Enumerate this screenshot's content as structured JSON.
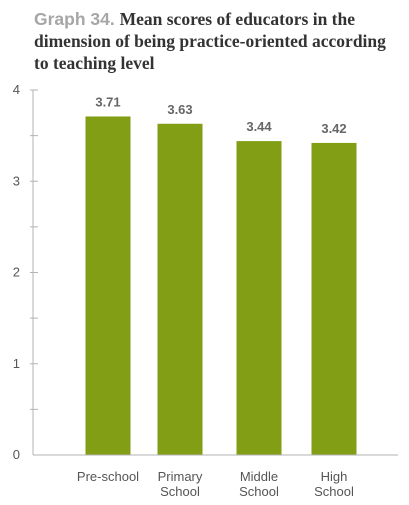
{
  "title": {
    "label": "Graph 34.",
    "text": "Mean scores of educators in the dimension of being practice-oriented according to teaching level"
  },
  "colors": {
    "bar": "#819e14",
    "axis": "#b3b3b3",
    "title_label": "#a6a6a6"
  },
  "chart_data": {
    "type": "bar",
    "categories": [
      [
        "Pre-school"
      ],
      [
        "Primary",
        "School"
      ],
      [
        "Middle",
        "School"
      ],
      [
        "High",
        "School"
      ]
    ],
    "values": [
      3.71,
      3.63,
      3.44,
      3.42
    ],
    "data_labels": [
      "3.71",
      "3.63",
      "3.44",
      "3.42"
    ],
    "yticks": [
      "0",
      "1",
      "2",
      "3",
      "4"
    ],
    "ylim": [
      0,
      4
    ],
    "grid": false,
    "legend": "none"
  }
}
